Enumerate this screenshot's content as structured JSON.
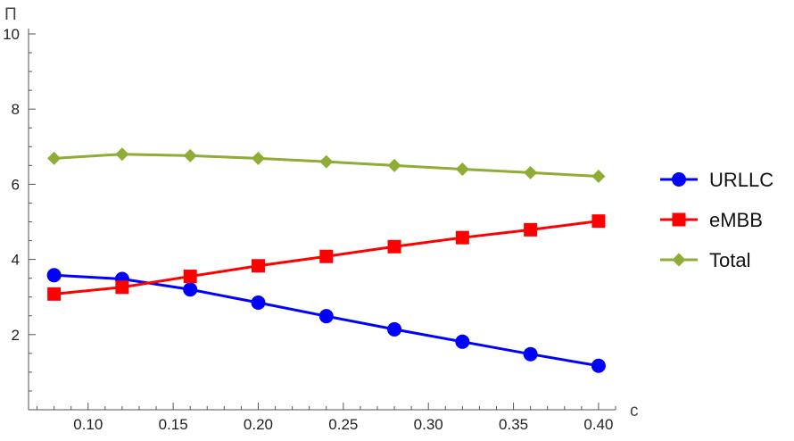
{
  "chart_data": {
    "type": "line",
    "title": "",
    "xlabel": "c",
    "ylabel": "Π",
    "x": [
      0.08,
      0.12,
      0.16,
      0.2,
      0.24,
      0.28,
      0.32,
      0.36,
      0.4
    ],
    "xlim": [
      0.065,
      0.41
    ],
    "ylim": [
      0,
      10
    ],
    "xticks": [
      0.1,
      0.15,
      0.2,
      0.25,
      0.3,
      0.35,
      0.4
    ],
    "xtick_labels": [
      "0.10",
      "0.15",
      "0.20",
      "0.25",
      "0.30",
      "0.35",
      "0.40"
    ],
    "yticks": [
      2,
      4,
      6,
      8,
      10
    ],
    "ytick_labels": [
      "2",
      "4",
      "6",
      "8",
      "10"
    ],
    "grid": false,
    "legend_position": "right",
    "series": [
      {
        "name": "URLLC",
        "marker": "circle",
        "color": "#0000ff",
        "values": [
          3.58,
          3.48,
          3.2,
          2.85,
          2.49,
          2.14,
          1.81,
          1.48,
          1.17
        ]
      },
      {
        "name": "eMBB",
        "marker": "square",
        "color": "#ff0000",
        "values": [
          3.08,
          3.26,
          3.55,
          3.83,
          4.08,
          4.34,
          4.58,
          4.79,
          5.02
        ]
      },
      {
        "name": "Total",
        "marker": "diamond",
        "color": "#8fac35",
        "values": [
          6.69,
          6.8,
          6.76,
          6.69,
          6.6,
          6.5,
          6.4,
          6.31,
          6.21
        ]
      }
    ]
  }
}
